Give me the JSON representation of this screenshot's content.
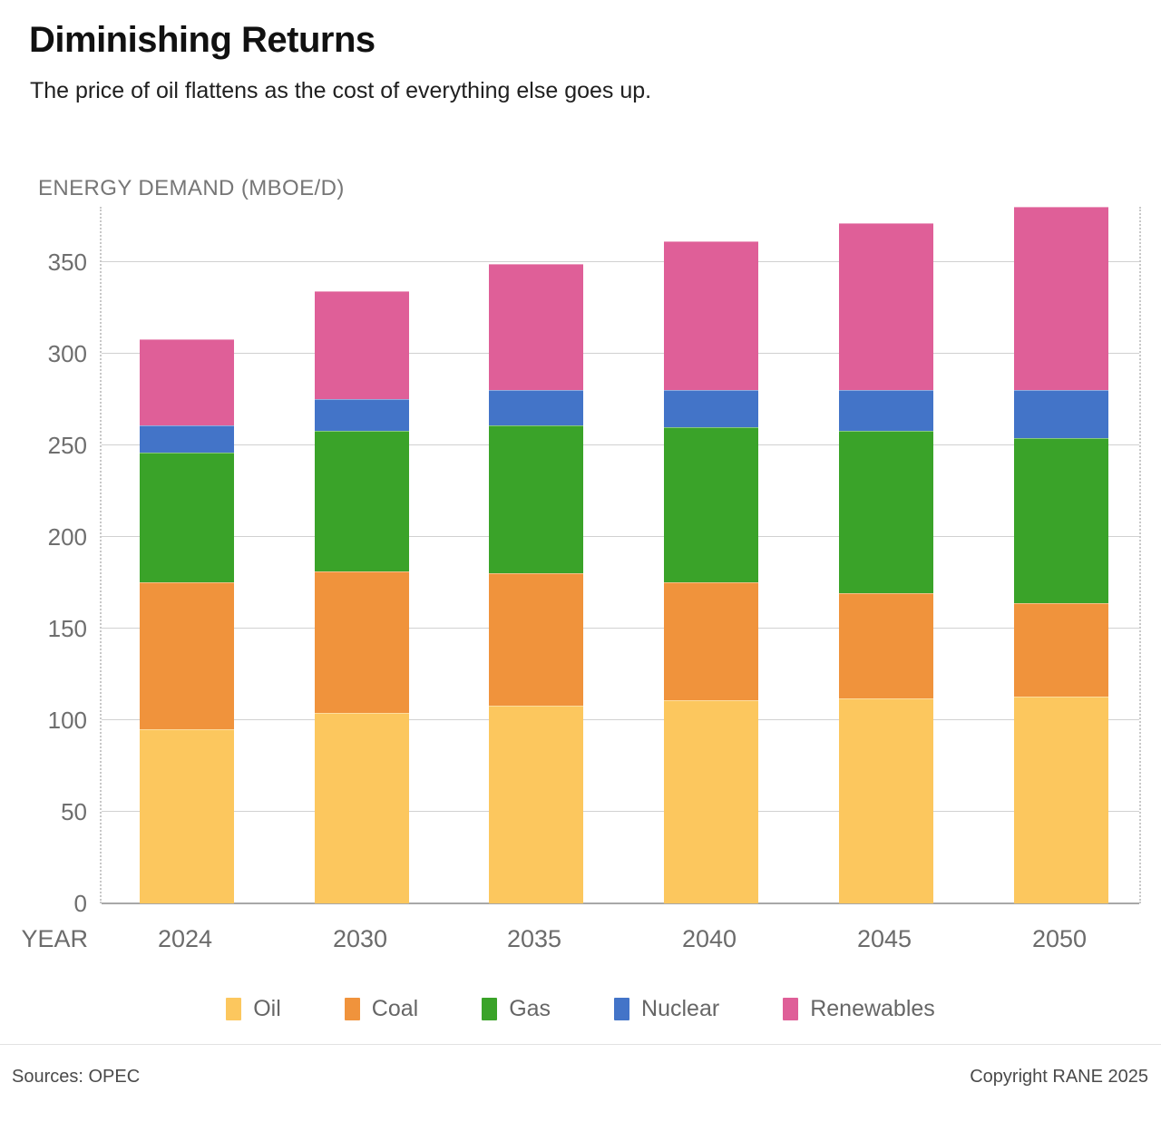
{
  "header": {
    "title": "Diminishing Returns",
    "subtitle": "The price of oil flattens as the cost of everything else goes up."
  },
  "chart": {
    "axis_title": "ENERGY DEMAND (MBOE/D)",
    "x_axis_title": "YEAR",
    "y_ticks": [
      0,
      50,
      100,
      150,
      200,
      250,
      300,
      350
    ]
  },
  "chart_data": {
    "type": "bar",
    "stacked": true,
    "title": "Diminishing Returns",
    "subtitle": "The price of oil flattens as the cost of everything else goes up.",
    "ylabel": "ENERGY DEMAND (MBOE/D)",
    "xlabel": "YEAR",
    "categories": [
      "2024",
      "2030",
      "2035",
      "2040",
      "2045",
      "2050"
    ],
    "series": [
      {
        "name": "Oil",
        "color": "#FCC75E",
        "values": [
          95,
          104,
          108,
          111,
          112,
          113
        ]
      },
      {
        "name": "Coal",
        "color": "#F0933C",
        "values": [
          80,
          77,
          72,
          64,
          57,
          51
        ]
      },
      {
        "name": "Gas",
        "color": "#3AA329",
        "values": [
          71,
          77,
          81,
          85,
          89,
          90
        ]
      },
      {
        "name": "Nuclear",
        "color": "#4374C8",
        "values": [
          15,
          17,
          19,
          20,
          22,
          26
        ]
      },
      {
        "name": "Renewables",
        "color": "#DF5F98",
        "values": [
          47,
          59,
          69,
          81,
          91,
          100
        ]
      }
    ],
    "totals": [
      308,
      334,
      349,
      361,
      371,
      380
    ],
    "ylim": [
      0,
      380
    ],
    "ytick_step": 50,
    "grid": "horizontal",
    "legend_position": "bottom"
  },
  "footer": {
    "source": "Sources: OPEC",
    "copyright": "Copyright RANE 2025"
  }
}
